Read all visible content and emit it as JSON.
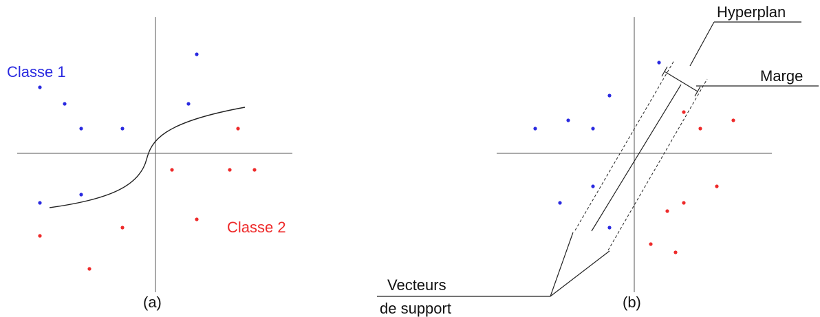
{
  "colors": {
    "class1": "#2a2ae0",
    "class2": "#ee2a2a",
    "ink": "#222222"
  },
  "panel_a": {
    "class1_label": "Classe 1",
    "class2_label": "Classe 2",
    "caption": "(a)",
    "class1_points": [
      [
        -14,
        8
      ],
      [
        -11,
        6
      ],
      [
        -9,
        3
      ],
      [
        -4,
        3
      ],
      [
        -9,
        -5
      ],
      [
        -14,
        -6
      ],
      [
        5,
        12
      ],
      [
        4,
        6
      ]
    ],
    "class2_points": [
      [
        10,
        3
      ],
      [
        12,
        -2
      ],
      [
        9,
        -2
      ],
      [
        2,
        -2
      ],
      [
        5,
        -8
      ],
      [
        -14,
        -10
      ],
      [
        -4,
        -9
      ],
      [
        -8,
        -14
      ]
    ]
  },
  "panel_b": {
    "hyperplan_label": "Hyperplan",
    "marge_label": "Marge",
    "vecteurs_label_line1": "Vecteurs",
    "vecteurs_label_line2": "de support",
    "caption": "(b)",
    "class1_points": [
      [
        -12,
        3
      ],
      [
        -8,
        4
      ],
      [
        -5,
        3
      ],
      [
        -3,
        7
      ],
      [
        -9,
        -6
      ],
      [
        -5,
        -4
      ],
      [
        -3,
        -9
      ],
      [
        3,
        11
      ]
    ],
    "class2_points": [
      [
        6,
        5
      ],
      [
        8,
        3
      ],
      [
        12,
        4
      ],
      [
        4,
        -7
      ],
      [
        6,
        -6
      ],
      [
        10,
        -4
      ],
      [
        2,
        -11
      ],
      [
        5,
        -12
      ]
    ]
  }
}
